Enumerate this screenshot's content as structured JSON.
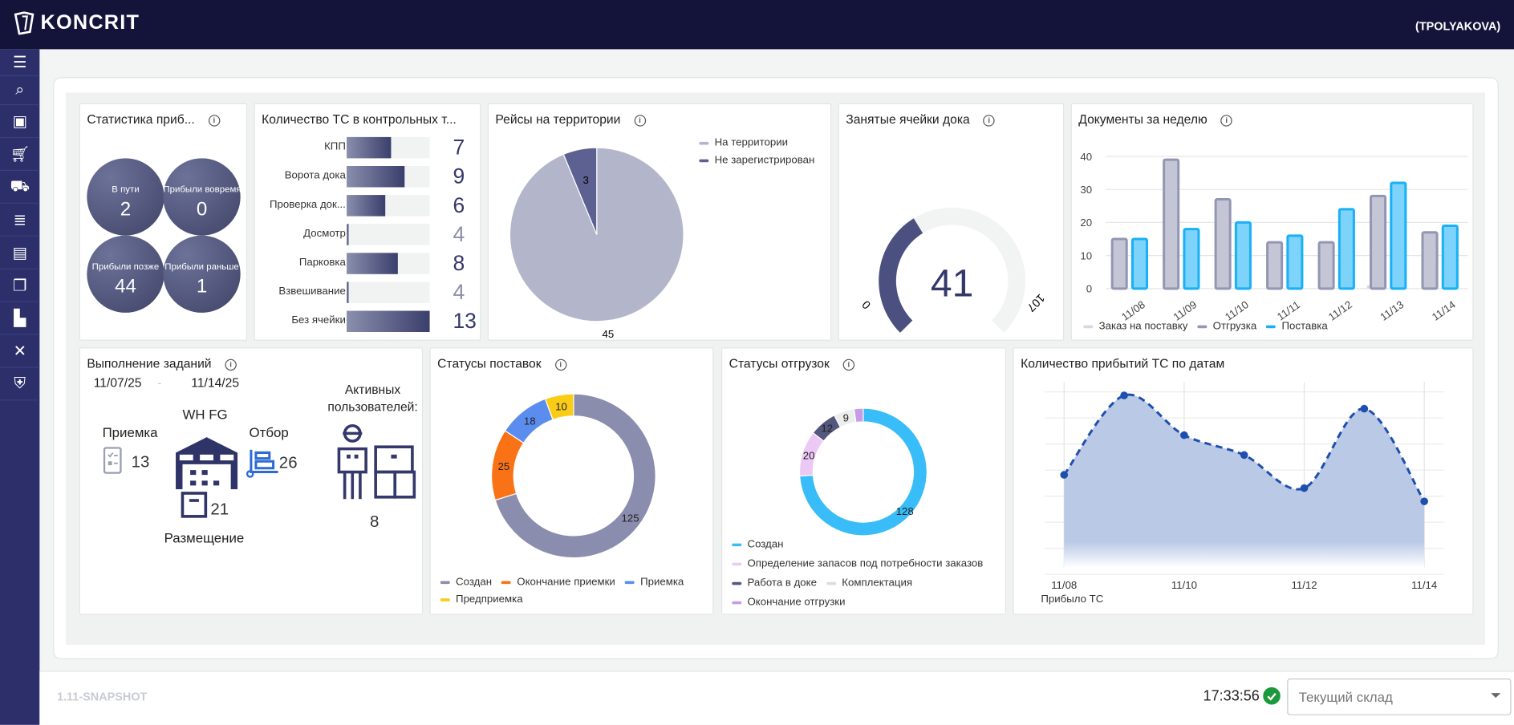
{
  "header": {
    "brand": "KONCRIT",
    "user": "(TPOLYAKOVA)"
  },
  "sidebar": {
    "icons": [
      "menu-icon",
      "search-icon",
      "location-icon",
      "cart-plus-icon",
      "truck-icon",
      "list-icon",
      "archive-icon",
      "documents-icon",
      "file-icon",
      "tools-icon",
      "shield-icon"
    ]
  },
  "arrival_stats": {
    "title": "Статистика приб...",
    "items": [
      {
        "label": "В пути",
        "value": "2"
      },
      {
        "label": "Прибыли вовремя",
        "value": "0"
      },
      {
        "label": "Прибыли позже",
        "value": "44"
      },
      {
        "label": "Прибыли раньше",
        "value": "1"
      }
    ]
  },
  "checkpoints": {
    "title": "Количество ТС в контрольных т...",
    "max": 13,
    "rows": [
      {
        "label": "КПП",
        "value": 7
      },
      {
        "label": "Ворота дока",
        "value": 9
      },
      {
        "label": "Проверка док...",
        "value": 6
      },
      {
        "label": "Досмотр",
        "value": 4
      },
      {
        "label": "Парковка",
        "value": 8
      },
      {
        "label": "Взвешивание",
        "value": 4
      },
      {
        "label": "Без ячейки",
        "value": 13
      }
    ]
  },
  "chart_data": [
    {
      "type": "pie",
      "title": "Рейсы на территории",
      "slices": [
        {
          "name": "На территории",
          "value": 45,
          "color": "#b3b6cb"
        },
        {
          "name": "Не зарегистрирован",
          "value": 3,
          "color": "#5c6191"
        }
      ],
      "legend": "top-right"
    },
    {
      "type": "gauge",
      "title": "Занятые ячейки дока",
      "value": 41,
      "min": 0,
      "max": 107,
      "color": "#4c5080",
      "track_color": "#f2f3f3"
    },
    {
      "type": "bar",
      "title": "Документы за неделю",
      "categories": [
        "11/08",
        "11/09",
        "11/10",
        "11/11",
        "11/12",
        "11/13",
        "11/14"
      ],
      "ylim": [
        0,
        40
      ],
      "yticks": [
        "0",
        "10",
        "20",
        "30",
        "40"
      ],
      "grid": true,
      "legend": "bottom",
      "series": [
        {
          "name": "Заказ на поставку",
          "color": "#d5d8e2",
          "values": [
            0,
            0,
            0,
            0,
            0,
            1,
            0
          ]
        },
        {
          "name": "Отгрузка",
          "color": "#9396b3",
          "values": [
            15,
            39,
            27,
            14,
            14,
            28,
            17
          ]
        },
        {
          "name": "Поставка",
          "color": "#1ab0f5",
          "values": [
            15,
            18,
            20,
            16,
            24,
            32,
            19
          ]
        }
      ]
    },
    {
      "type": "pie",
      "title": "Статусы поставок",
      "donut": true,
      "legend": "bottom",
      "slices": [
        {
          "name": "Создан",
          "value": 125,
          "color": "#8b8daf"
        },
        {
          "name": "Окончание приемки",
          "value": 25,
          "color": "#f97316"
        },
        {
          "name": "Приемка",
          "value": 18,
          "color": "#5b8def"
        },
        {
          "name": "Предприемка",
          "value": 10,
          "color": "#facc15"
        }
      ]
    },
    {
      "type": "pie",
      "title": "Статусы отгрузок",
      "donut": true,
      "legend": "bottom",
      "slices": [
        {
          "name": "Создан",
          "value": 128,
          "color": "#38bdf8"
        },
        {
          "name": "Определение запасов под потребности заказов",
          "value": 20,
          "color": "#ecc8f4"
        },
        {
          "name": "Работа в доке",
          "value": 12,
          "color": "#54587f"
        },
        {
          "name": "Комплектация",
          "value": 9,
          "color": "#eceded"
        },
        {
          "name": "Окончание отгрузки",
          "value": 4,
          "color": "#c79be6"
        }
      ]
    },
    {
      "type": "area",
      "title": "Количество прибытий ТС по датам",
      "x": [
        "11/08",
        "11/09",
        "11/10",
        "11/11",
        "11/12",
        "11/13",
        "11/14"
      ],
      "xticks": [
        "11/08",
        "11/10",
        "11/12",
        "11/14"
      ],
      "series": [
        {
          "name": "Прибыло ТС",
          "values": [
            7,
            13,
            10,
            8.5,
            6,
            12,
            5
          ],
          "color": "#1e4fae",
          "fill": "#b9c9e6"
        }
      ],
      "grid": true,
      "legend": "bottom-left"
    }
  ],
  "tasks": {
    "title": "Выполнение заданий",
    "date_from": "11/07/25",
    "date_sep": "-",
    "date_to": "11/14/25",
    "warehouse": "WH FG",
    "receiving_label": "Приемка",
    "receiving_value": "13",
    "picking_label": "Отбор",
    "picking_value": "26",
    "putaway_label": "Размещение",
    "putaway_value": "21",
    "active_users_label": "Активных пользователей:",
    "active_users_value": "8"
  },
  "footer": {
    "version": "1.11-SNAPSHOT",
    "time": "17:33:56",
    "warehouse_placeholder": "Текущий склад"
  }
}
